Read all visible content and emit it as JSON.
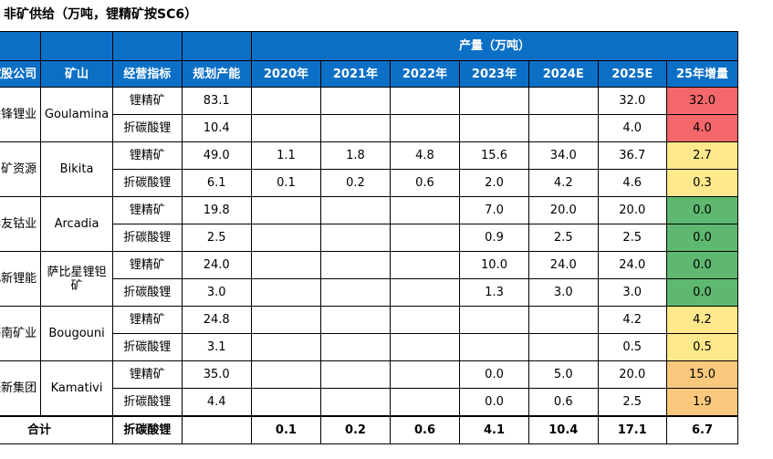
{
  "title": "非矿供给（万吨，锂精矿按SC6）",
  "header": {
    "company": "控股公司",
    "mine": "矿山",
    "indicator": "经营指标",
    "capacity": "规划产能",
    "production_group": "产量（万吨）",
    "years": [
      "2020年",
      "2021年",
      "2022年",
      "2023年",
      "2024E",
      "2025E",
      "25年增量"
    ]
  },
  "groups": [
    {
      "company": "赣锋锂业",
      "mine": "Goulamina",
      "rows": [
        {
          "indicator": "锂精矿",
          "capacity": "83.1",
          "values": [
            "",
            "",
            "",
            "",
            "",
            "32.0",
            "32.0"
          ],
          "inc_color": "red"
        },
        {
          "indicator": "折碳酸锂",
          "capacity": "10.4",
          "values": [
            "",
            "",
            "",
            "",
            "",
            "4.0",
            "4.0"
          ],
          "inc_color": "red"
        }
      ]
    },
    {
      "company": "中矿资源",
      "mine": "Bikita",
      "rows": [
        {
          "indicator": "锂精矿",
          "capacity": "49.0",
          "values": [
            "1.1",
            "1.8",
            "4.8",
            "15.6",
            "34.0",
            "36.7",
            "2.7"
          ],
          "inc_color": "yellow"
        },
        {
          "indicator": "折碳酸锂",
          "capacity": "6.1",
          "values": [
            "0.1",
            "0.2",
            "0.6",
            "2.0",
            "4.2",
            "4.6",
            "0.3"
          ],
          "inc_color": "yellow"
        }
      ]
    },
    {
      "company": "华友钴业",
      "mine": "Arcadia",
      "rows": [
        {
          "indicator": "锂精矿",
          "capacity": "19.8",
          "values": [
            "",
            "",
            "",
            "7.0",
            "20.0",
            "20.0",
            "0.0"
          ],
          "inc_color": "green"
        },
        {
          "indicator": "折碳酸锂",
          "capacity": "2.5",
          "values": [
            "",
            "",
            "",
            "0.9",
            "2.5",
            "2.5",
            "0.0"
          ],
          "inc_color": "green"
        }
      ]
    },
    {
      "company": "雅化新锂能",
      "mine": "萨比星锂钽矿",
      "rows": [
        {
          "indicator": "锂精矿",
          "capacity": "24.0",
          "values": [
            "",
            "",
            "",
            "10.0",
            "24.0",
            "24.0",
            "0.0"
          ],
          "inc_color": "green"
        },
        {
          "indicator": "折碳酸锂",
          "capacity": "3.0",
          "values": [
            "",
            "",
            "",
            "1.3",
            "3.0",
            "3.0",
            "0.0"
          ],
          "inc_color": "green"
        }
      ]
    },
    {
      "company": "海南矿业",
      "mine": "Bougouni",
      "rows": [
        {
          "indicator": "锂精矿",
          "capacity": "24.8",
          "values": [
            "",
            "",
            "",
            "",
            "",
            "4.2",
            "4.2"
          ],
          "inc_color": "yellow"
        },
        {
          "indicator": "折碳酸锂",
          "capacity": "3.1",
          "values": [
            "",
            "",
            "",
            "",
            "",
            "0.5",
            "0.5"
          ],
          "inc_color": "yellow"
        }
      ]
    },
    {
      "company": "盛新集团",
      "mine": "Kamativi",
      "rows": [
        {
          "indicator": "锂精矿",
          "capacity": "35.0",
          "values": [
            "",
            "",
            "",
            "0.0",
            "5.0",
            "20.0",
            "15.0"
          ],
          "inc_color": "orange"
        },
        {
          "indicator": "折碳酸锂",
          "capacity": "4.4",
          "values": [
            "",
            "",
            "",
            "0.0",
            "0.6",
            "2.5",
            "1.9"
          ],
          "inc_color": "orange"
        }
      ]
    }
  ],
  "total": {
    "label": "合计",
    "indicator": "折碳酸锂",
    "capacity": "",
    "values": [
      "0.1",
      "0.2",
      "0.6",
      "4.1",
      "10.4",
      "17.1",
      "6.7"
    ]
  },
  "colors": {
    "header_blue": "#0b6fc6",
    "red": "#f4676b",
    "yellow": "#fde98b",
    "green": "#5fb86f",
    "orange": "#fbc97d"
  }
}
